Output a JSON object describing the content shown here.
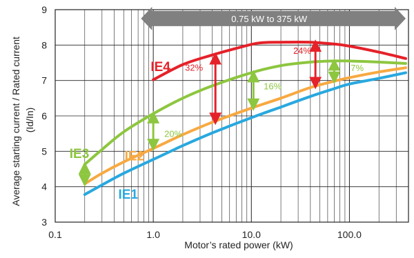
{
  "chart_data": {
    "type": "line",
    "xscale": "log",
    "xlim": [
      0.1,
      400
    ],
    "ylim": [
      3,
      9
    ],
    "grid": true,
    "xlabel": "Motor’s rated power (kW)",
    "ylabel_lines": [
      "Average starting current / Rated current",
      "(Id/In)"
    ],
    "x_ticks": [
      0.1,
      1,
      10,
      100
    ],
    "x_tick_labels": [
      "0.1",
      "1.0",
      "10.0",
      "100.0"
    ],
    "y_ticks": [
      3,
      4,
      5,
      6,
      7,
      8,
      9
    ],
    "y_tick_labels": [
      "3",
      "4",
      "5",
      "6",
      "7",
      "8",
      "9"
    ],
    "range_banner": {
      "text": "0.75 kW to 375 kW",
      "from": 0.75,
      "to": 375,
      "y": 8.75,
      "color": "#808080"
    },
    "series": [
      {
        "name": "IE4",
        "color": "#e52129",
        "x": [
          1,
          2,
          4,
          8,
          12,
          20,
          40,
          70,
          100,
          200,
          375
        ],
        "y": [
          7.02,
          7.45,
          7.72,
          7.95,
          8.06,
          8.08,
          8.08,
          8.03,
          7.97,
          7.8,
          7.62
        ]
      },
      {
        "name": "IE3",
        "color": "#8dc63f",
        "x": [
          0.2,
          0.3,
          0.5,
          1,
          2,
          4,
          10,
          20,
          40,
          70,
          100,
          200,
          375
        ],
        "y": [
          4.63,
          5.05,
          5.55,
          6.06,
          6.5,
          6.85,
          7.22,
          7.42,
          7.52,
          7.55,
          7.55,
          7.52,
          7.48
        ]
      },
      {
        "name": "IE2",
        "color": "#f7a941",
        "x": [
          0.2,
          0.3,
          0.5,
          1,
          2,
          4,
          10,
          20,
          40,
          70,
          100,
          200,
          375
        ],
        "y": [
          4.08,
          4.38,
          4.7,
          5.08,
          5.47,
          5.82,
          6.22,
          6.5,
          6.8,
          6.98,
          7.08,
          7.24,
          7.36
        ]
      },
      {
        "name": "IE1",
        "color": "#29a8df",
        "x": [
          0.2,
          0.3,
          0.5,
          1,
          2,
          4,
          10,
          20,
          40,
          70,
          100,
          200,
          375
        ],
        "y": [
          3.78,
          4.05,
          4.38,
          4.77,
          5.16,
          5.52,
          5.95,
          6.25,
          6.55,
          6.77,
          6.9,
          7.06,
          7.22
        ]
      }
    ],
    "series_label_positions": [
      {
        "name": "IE4",
        "x": 0.94,
        "y": 7.4
      },
      {
        "name": "IE3",
        "x": 0.14,
        "y": 4.95
      },
      {
        "name": "IE2",
        "x": 0.51,
        "y": 4.88
      },
      {
        "name": "IE1",
        "x": 0.44,
        "y": 3.8
      }
    ],
    "annotations": [
      {
        "text": "32%",
        "color": "#e52129",
        "x": 4.3,
        "y_from": 7.72,
        "y_to": 5.82,
        "label_x": 2.6,
        "label_y": 7.37
      },
      {
        "text": "24%",
        "color": "#e52129",
        "x": 45,
        "y_from": 8.08,
        "y_to": 6.83,
        "label_x": 33,
        "label_y": 7.85
      },
      {
        "text": "20%",
        "color": "#8dc63f",
        "x": 1,
        "y_from": 6.06,
        "y_to": 5.08,
        "label_x": 1.6,
        "label_y": 5.5
      },
      {
        "text": "16%",
        "color": "#8dc63f",
        "x": 10.5,
        "y_from": 7.22,
        "y_to": 6.22,
        "label_x": 16.5,
        "label_y": 6.85
      },
      {
        "text": "7%",
        "color": "#8dc63f",
        "x": 70,
        "y_from": 7.55,
        "y_to": 6.98,
        "label_x": 120,
        "label_y": 7.36
      },
      {
        "text": "",
        "color": "#8dc63f",
        "x": 0.2,
        "y_from": 4.63,
        "y_to": 4.08,
        "label_x": 0.2,
        "label_y": 4.3
      }
    ]
  }
}
